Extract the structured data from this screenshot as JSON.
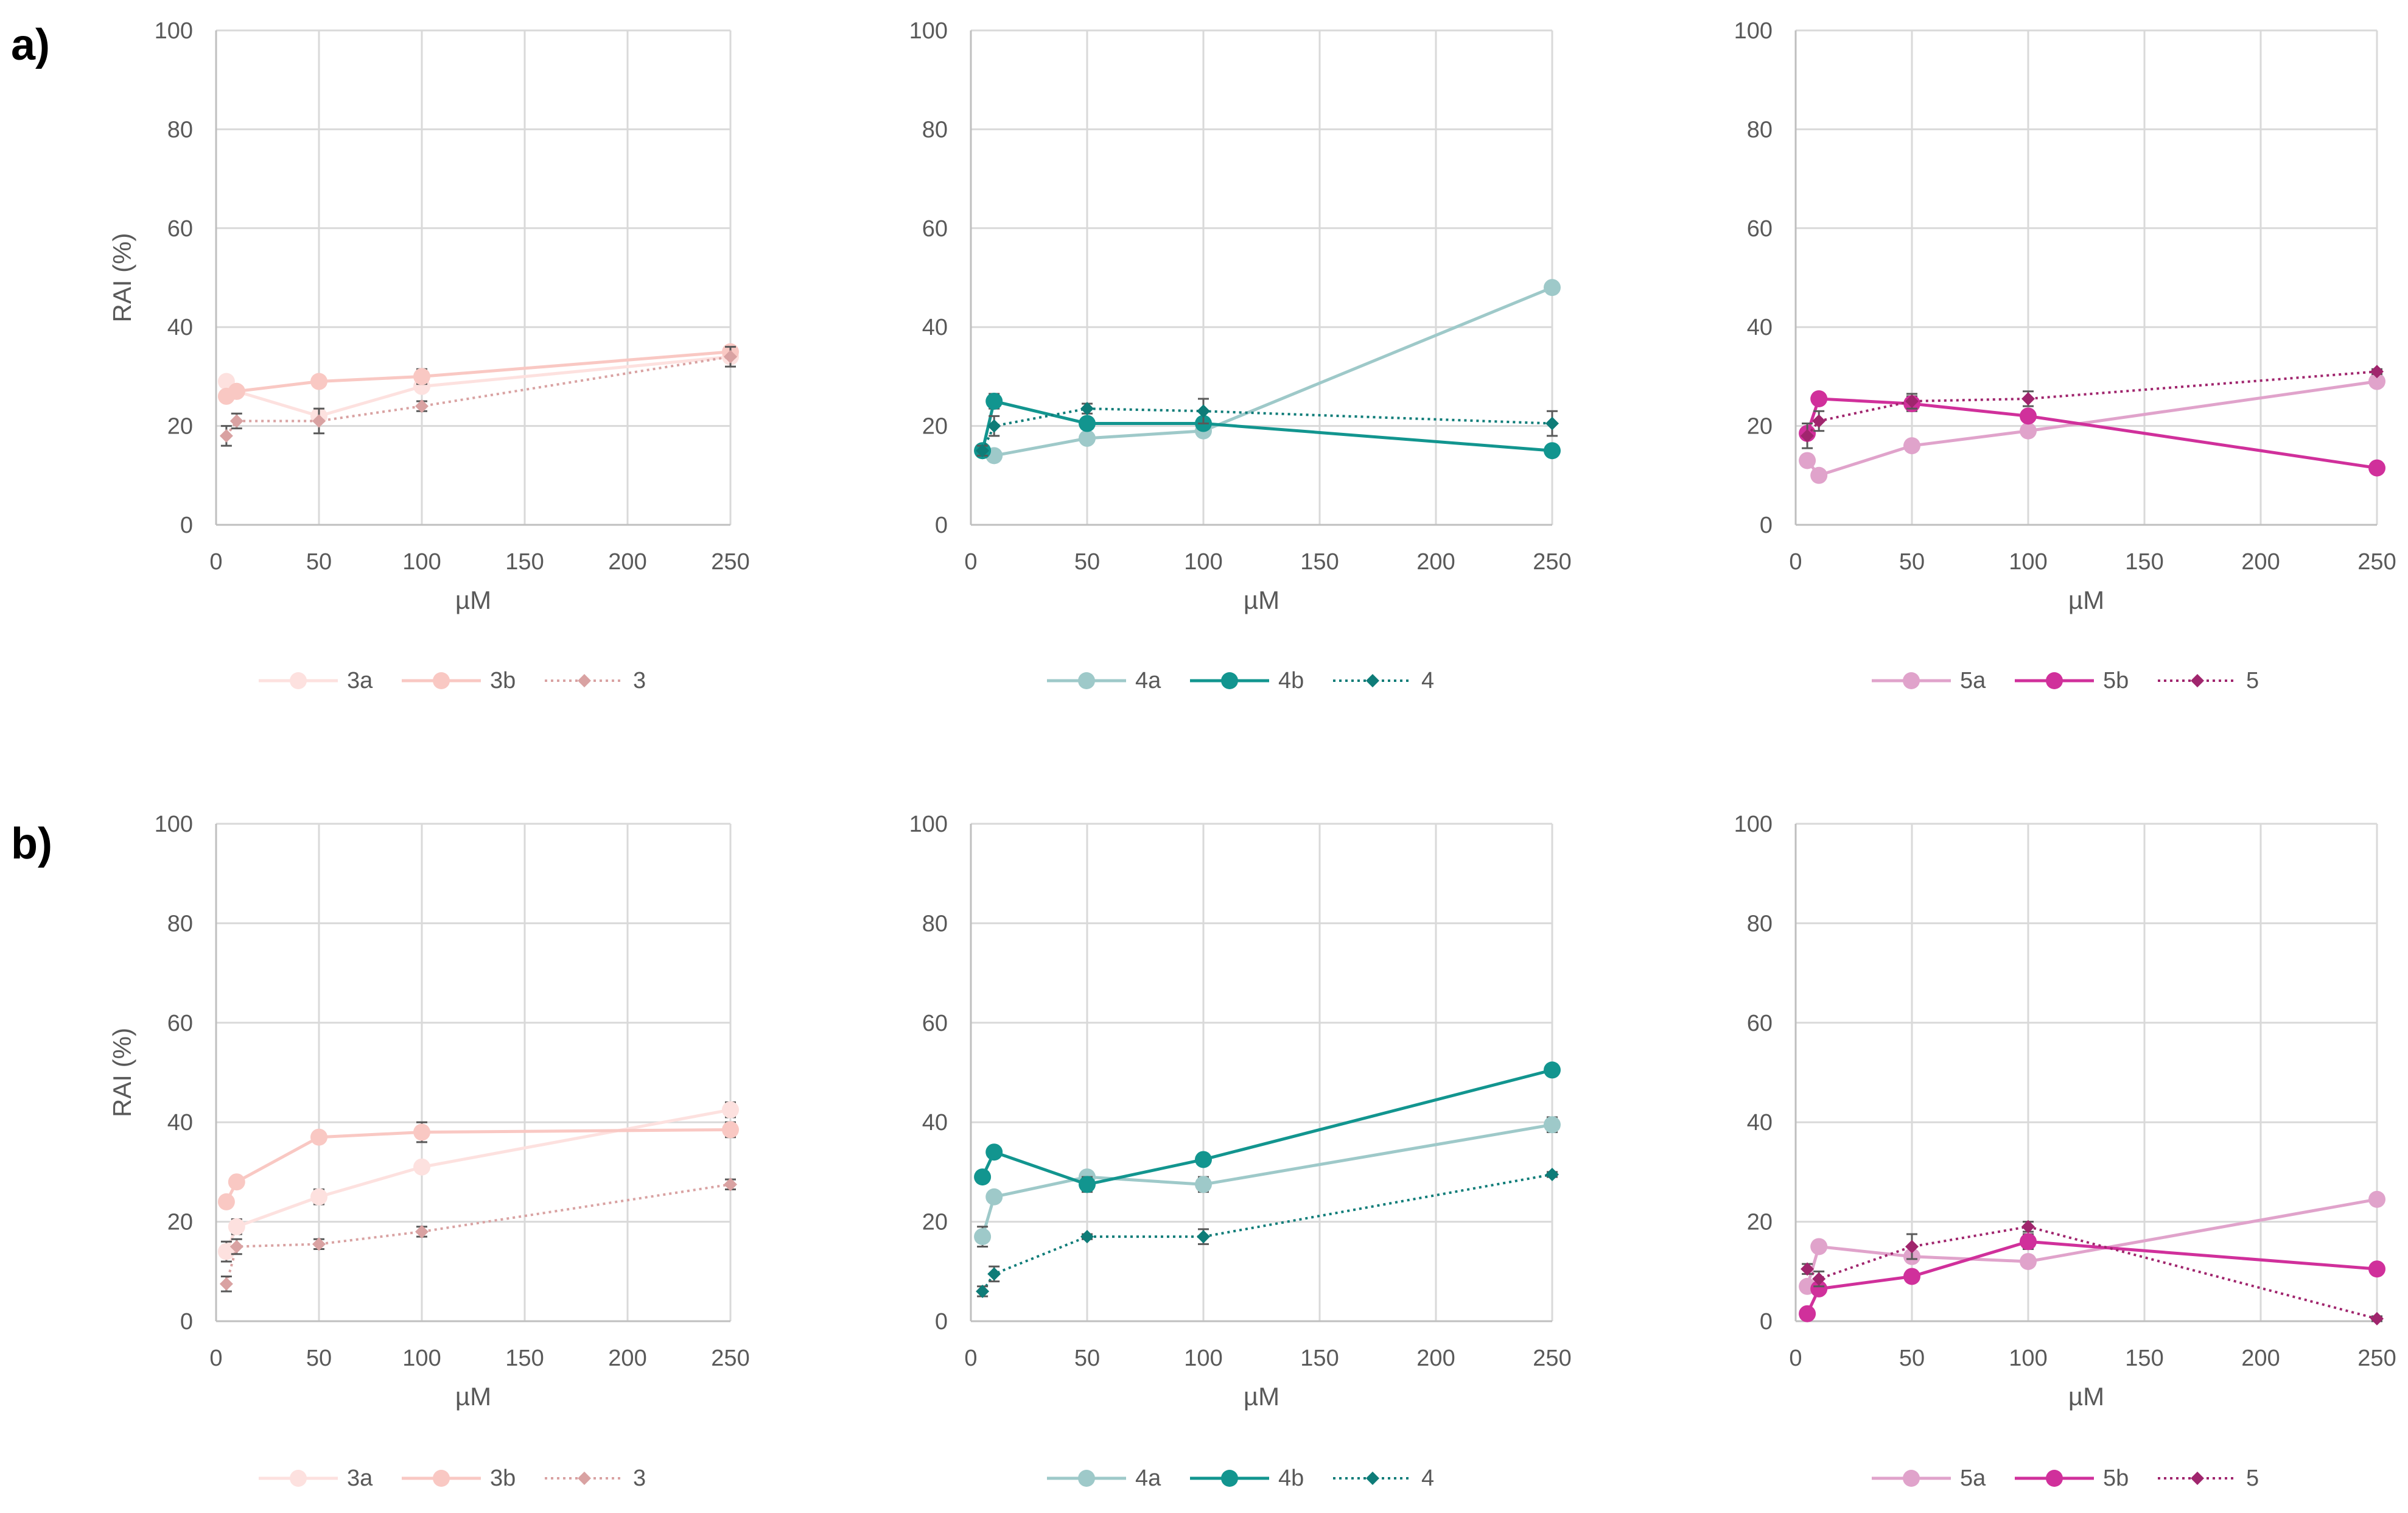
{
  "figure": {
    "row_labels": [
      "a)",
      "b)"
    ]
  },
  "chart_data": [
    {
      "type": "line",
      "panel": "a",
      "title": "",
      "xlabel": "µM",
      "ylabel": "RAI (%)",
      "xlim": [
        0,
        250
      ],
      "ylim": [
        0,
        100
      ],
      "xticks": [
        0,
        50,
        100,
        150,
        200,
        250
      ],
      "yticks": [
        0,
        20,
        40,
        60,
        80,
        100
      ],
      "grid": true,
      "legend_position": "bottom",
      "series": [
        {
          "name": "3a",
          "color": "#fde1df",
          "dash": "solid",
          "marker": "circle",
          "x": [
            5,
            10,
            50,
            100,
            250
          ],
          "y": [
            29,
            27,
            22,
            28,
            34
          ],
          "err": [
            1,
            1,
            1,
            1,
            1
          ]
        },
        {
          "name": "3b",
          "color": "#f9c8c3",
          "dash": "solid",
          "marker": "circle",
          "x": [
            5,
            10,
            50,
            100,
            250
          ],
          "y": [
            26,
            27,
            29,
            30,
            35
          ],
          "err": [
            1,
            1,
            1,
            1.5,
            1
          ]
        },
        {
          "name": "3",
          "color": "#d9a2a2",
          "dash": "dotted",
          "marker": "diamond",
          "x": [
            5,
            10,
            50,
            100,
            250
          ],
          "y": [
            18,
            21,
            21,
            24,
            34
          ],
          "err": [
            2,
            1.5,
            2.5,
            1,
            2
          ]
        }
      ]
    },
    {
      "type": "line",
      "panel": "a",
      "title": "",
      "xlabel": "µM",
      "ylabel": "",
      "xlim": [
        0,
        250
      ],
      "ylim": [
        0,
        100
      ],
      "xticks": [
        0,
        50,
        100,
        150,
        200,
        250
      ],
      "yticks": [
        0,
        20,
        40,
        60,
        80,
        100
      ],
      "grid": true,
      "legend_position": "bottom",
      "series": [
        {
          "name": "4a",
          "color": "#9ec9c9",
          "dash": "solid",
          "marker": "circle",
          "x": [
            5,
            10,
            50,
            100,
            250
          ],
          "y": [
            15,
            14,
            17.5,
            19,
            48
          ],
          "err": [
            1,
            1,
            1,
            1,
            0.5
          ]
        },
        {
          "name": "4b",
          "color": "#12958f",
          "dash": "solid",
          "marker": "circle",
          "x": [
            5,
            10,
            50,
            100,
            250
          ],
          "y": [
            15,
            25,
            20.5,
            20.5,
            15
          ],
          "err": [
            1,
            1.5,
            1,
            1,
            0.5
          ]
        },
        {
          "name": "4",
          "color": "#0e7c78",
          "dash": "dotted",
          "marker": "diamond",
          "x": [
            5,
            10,
            50,
            100,
            250
          ],
          "y": [
            15,
            20,
            23.5,
            23,
            20.5
          ],
          "err": [
            1,
            2,
            1,
            2.5,
            2.5
          ]
        }
      ]
    },
    {
      "type": "line",
      "panel": "a",
      "title": "",
      "xlabel": "µM",
      "ylabel": "",
      "xlim": [
        0,
        250
      ],
      "ylim": [
        0,
        100
      ],
      "xticks": [
        0,
        50,
        100,
        150,
        200,
        250
      ],
      "yticks": [
        0,
        20,
        40,
        60,
        80,
        100
      ],
      "grid": true,
      "legend_position": "bottom",
      "series": [
        {
          "name": "5a",
          "color": "#e0a3cb",
          "dash": "solid",
          "marker": "circle",
          "x": [
            5,
            10,
            50,
            100,
            250
          ],
          "y": [
            13,
            10,
            16,
            19,
            29
          ],
          "err": [
            0.5,
            0.5,
            0.5,
            1,
            1
          ]
        },
        {
          "name": "5b",
          "color": "#d0309b",
          "dash": "solid",
          "marker": "circle",
          "x": [
            5,
            10,
            50,
            100,
            250
          ],
          "y": [
            18.5,
            25.5,
            24.5,
            22,
            11.5
          ],
          "err": [
            1,
            0.5,
            1.5,
            1,
            0.5
          ]
        },
        {
          "name": "5",
          "color": "#a0256d",
          "dash": "dotted",
          "marker": "diamond",
          "x": [
            5,
            10,
            50,
            100,
            250
          ],
          "y": [
            18,
            21,
            25,
            25.5,
            31
          ],
          "err": [
            2.5,
            2,
            1.5,
            1.5,
            0.5
          ]
        }
      ]
    },
    {
      "type": "line",
      "panel": "b",
      "title": "",
      "xlabel": "µM",
      "ylabel": "RAI (%)",
      "xlim": [
        0,
        250
      ],
      "ylim": [
        0,
        100
      ],
      "xticks": [
        0,
        50,
        100,
        150,
        200,
        250
      ],
      "yticks": [
        0,
        20,
        40,
        60,
        80,
        100
      ],
      "grid": true,
      "legend_position": "bottom",
      "series": [
        {
          "name": "3a",
          "color": "#fde1df",
          "dash": "solid",
          "marker": "circle",
          "x": [
            5,
            10,
            50,
            100,
            250
          ],
          "y": [
            14,
            19,
            25,
            31,
            42.5
          ],
          "err": [
            2,
            1.5,
            1.5,
            1,
            1.5
          ]
        },
        {
          "name": "3b",
          "color": "#f9c8c3",
          "dash": "solid",
          "marker": "circle",
          "x": [
            5,
            10,
            50,
            100,
            250
          ],
          "y": [
            24,
            28,
            37,
            38,
            38.5
          ],
          "err": [
            1,
            1,
            1,
            2,
            1.5
          ]
        },
        {
          "name": "3",
          "color": "#d9a2a2",
          "dash": "dotted",
          "marker": "diamond",
          "x": [
            5,
            10,
            50,
            100,
            250
          ],
          "y": [
            7.5,
            15,
            15.5,
            18,
            27.5
          ],
          "err": [
            1.5,
            1.5,
            1,
            1,
            1
          ]
        }
      ]
    },
    {
      "type": "line",
      "panel": "b",
      "title": "",
      "xlabel": "µM",
      "ylabel": "",
      "xlim": [
        0,
        250
      ],
      "ylim": [
        0,
        100
      ],
      "xticks": [
        0,
        50,
        100,
        150,
        200,
        250
      ],
      "yticks": [
        0,
        20,
        40,
        60,
        80,
        100
      ],
      "grid": true,
      "legend_position": "bottom",
      "series": [
        {
          "name": "4a",
          "color": "#9ec9c9",
          "dash": "solid",
          "marker": "circle",
          "x": [
            5,
            10,
            50,
            100,
            250
          ],
          "y": [
            17,
            25,
            29,
            27.5,
            39.5
          ],
          "err": [
            2,
            1,
            1,
            1.5,
            1.5
          ]
        },
        {
          "name": "4b",
          "color": "#12958f",
          "dash": "solid",
          "marker": "circle",
          "x": [
            5,
            10,
            50,
            100,
            250
          ],
          "y": [
            29,
            34,
            27.5,
            32.5,
            50.5
          ],
          "err": [
            0.5,
            0.5,
            1.5,
            0.5,
            0.5
          ]
        },
        {
          "name": "4",
          "color": "#0e7c78",
          "dash": "dotted",
          "marker": "diamond",
          "x": [
            5,
            10,
            50,
            100,
            250
          ],
          "y": [
            6,
            9.5,
            17,
            17,
            29.5
          ],
          "err": [
            1,
            1.5,
            0.5,
            1.5,
            0.5
          ]
        }
      ]
    },
    {
      "type": "line",
      "panel": "b",
      "title": "",
      "xlabel": "µM",
      "ylabel": "",
      "xlim": [
        0,
        250
      ],
      "ylim": [
        0,
        100
      ],
      "xticks": [
        0,
        50,
        100,
        150,
        200,
        250
      ],
      "yticks": [
        0,
        20,
        40,
        60,
        80,
        100
      ],
      "grid": true,
      "legend_position": "bottom",
      "series": [
        {
          "name": "5a",
          "color": "#e0a3cb",
          "dash": "solid",
          "marker": "circle",
          "x": [
            5,
            10,
            50,
            100,
            250
          ],
          "y": [
            7,
            15,
            13,
            12,
            24.5
          ],
          "err": [
            0.5,
            0.5,
            1,
            0.5,
            0.5
          ]
        },
        {
          "name": "5b",
          "color": "#d0309b",
          "dash": "solid",
          "marker": "circle",
          "x": [
            5,
            10,
            50,
            100,
            250
          ],
          "y": [
            1.5,
            6.5,
            9,
            16,
            10.5
          ],
          "err": [
            0.5,
            0.5,
            0.5,
            1.5,
            0.5
          ]
        },
        {
          "name": "5",
          "color": "#a0256d",
          "dash": "dotted",
          "marker": "diamond",
          "x": [
            5,
            10,
            50,
            100,
            250
          ],
          "y": [
            10.5,
            8.5,
            15,
            19,
            0.5
          ],
          "err": [
            1,
            1.5,
            2.5,
            1,
            0.5
          ]
        }
      ]
    }
  ]
}
